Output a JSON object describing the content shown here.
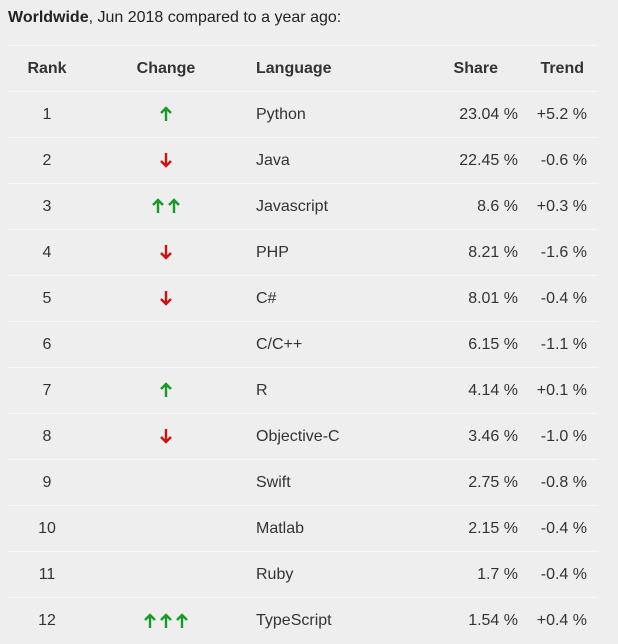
{
  "caption": {
    "bold": "Worldwide",
    "rest": ", Jun 2018 compared to a year ago:"
  },
  "headers": {
    "rank": "Rank",
    "change": "Change",
    "language": "Language",
    "share": "Share",
    "trend": "Trend"
  },
  "colors": {
    "up": "#1a9a2a",
    "down": "#cc1111"
  },
  "rows": [
    {
      "rank": "1",
      "change": "up",
      "count": 1,
      "language": "Python",
      "share": "23.04 %",
      "trend": "+5.2 %"
    },
    {
      "rank": "2",
      "change": "down",
      "count": 1,
      "language": "Java",
      "share": "22.45 %",
      "trend": "-0.6 %"
    },
    {
      "rank": "3",
      "change": "up",
      "count": 2,
      "language": "Javascript",
      "share": "8.6 %",
      "trend": "+0.3 %"
    },
    {
      "rank": "4",
      "change": "down",
      "count": 1,
      "language": "PHP",
      "share": "8.21 %",
      "trend": "-1.6 %"
    },
    {
      "rank": "5",
      "change": "down",
      "count": 1,
      "language": "C#",
      "share": "8.01 %",
      "trend": "-0.4 %"
    },
    {
      "rank": "6",
      "change": "none",
      "count": 0,
      "language": "C/C++",
      "share": "6.15 %",
      "trend": "-1.1 %"
    },
    {
      "rank": "7",
      "change": "up",
      "count": 1,
      "language": "R",
      "share": "4.14 %",
      "trend": "+0.1 %"
    },
    {
      "rank": "8",
      "change": "down",
      "count": 1,
      "language": "Objective-C",
      "share": "3.46 %",
      "trend": "-1.0 %"
    },
    {
      "rank": "9",
      "change": "none",
      "count": 0,
      "language": "Swift",
      "share": "2.75 %",
      "trend": "-0.8 %"
    },
    {
      "rank": "10",
      "change": "none",
      "count": 0,
      "language": "Matlab",
      "share": "2.15 %",
      "trend": "-0.4 %"
    },
    {
      "rank": "11",
      "change": "none",
      "count": 0,
      "language": "Ruby",
      "share": "1.7 %",
      "trend": "-0.4 %"
    },
    {
      "rank": "12",
      "change": "up",
      "count": 3,
      "language": "TypeScript",
      "share": "1.54 %",
      "trend": "+0.4 %"
    }
  ]
}
